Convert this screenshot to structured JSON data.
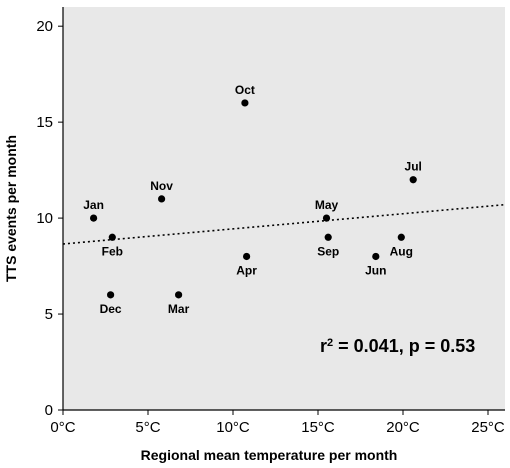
{
  "chart_data": {
    "type": "scatter",
    "title": "",
    "xlabel": "Regional mean temperature per month",
    "ylabel": "TTS events per month",
    "xlim": [
      0,
      26
    ],
    "ylim": [
      0,
      21
    ],
    "xticks": [
      0,
      5,
      10,
      15,
      20,
      25
    ],
    "xtick_labels": [
      "0°C",
      "5°C",
      "10°C",
      "15°C",
      "20°C",
      "25°C"
    ],
    "yticks": [
      0,
      5,
      10,
      15,
      20
    ],
    "ytick_labels": [
      "0",
      "5",
      "10",
      "15",
      "20"
    ],
    "grid": false,
    "background_color": "#e8e8e8",
    "point_color": "#000000",
    "points": [
      {
        "label": "Jan",
        "x": 1.8,
        "y": 10,
        "label_pos": "above"
      },
      {
        "label": "Feb",
        "x": 2.9,
        "y": 9,
        "label_pos": "below"
      },
      {
        "label": "Mar",
        "x": 6.8,
        "y": 6,
        "label_pos": "below"
      },
      {
        "label": "Apr",
        "x": 10.8,
        "y": 8,
        "label_pos": "below"
      },
      {
        "label": "May",
        "x": 15.5,
        "y": 10,
        "label_pos": "above"
      },
      {
        "label": "Jun",
        "x": 18.4,
        "y": 8,
        "label_pos": "below"
      },
      {
        "label": "Jul",
        "x": 20.6,
        "y": 12,
        "label_pos": "above"
      },
      {
        "label": "Aug",
        "x": 19.9,
        "y": 9,
        "label_pos": "below"
      },
      {
        "label": "Sep",
        "x": 15.6,
        "y": 9,
        "label_pos": "below"
      },
      {
        "label": "Oct",
        "x": 10.7,
        "y": 16,
        "label_pos": "above"
      },
      {
        "label": "Nov",
        "x": 5.8,
        "y": 11,
        "label_pos": "above"
      },
      {
        "label": "Dec",
        "x": 2.8,
        "y": 6,
        "label_pos": "below"
      }
    ],
    "trendline": {
      "style": "dotted",
      "x": [
        0,
        26
      ],
      "y": [
        8.65,
        10.7
      ]
    },
    "annotation": {
      "r_symbol": "r",
      "r_exponent": "2",
      "text": " = 0.041, p = 0.53"
    }
  }
}
